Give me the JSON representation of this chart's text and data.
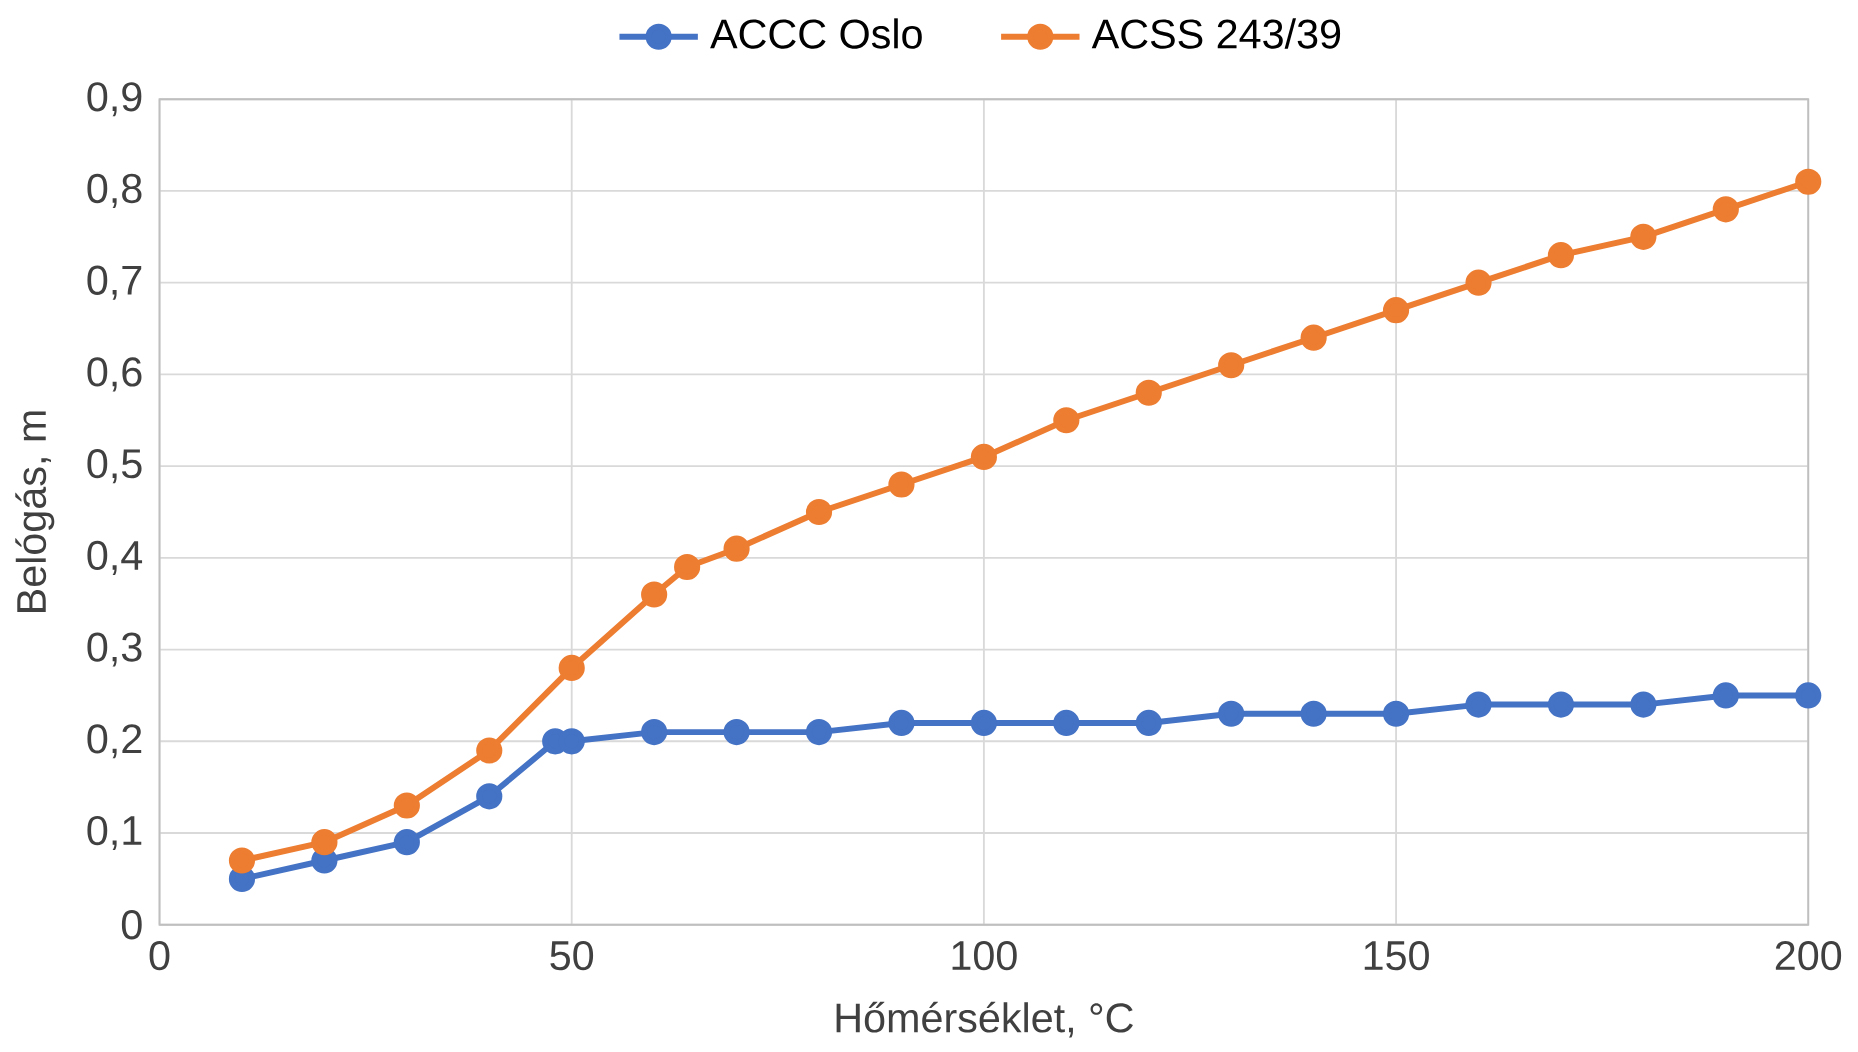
{
  "chart_data": {
    "type": "line",
    "xlabel": "Hőmérséklet, °C",
    "ylabel": "Belógás, m",
    "series": [
      {
        "name": "ACCC Oslo",
        "color": "#4472c4",
        "x": [
          10,
          20,
          30,
          40,
          48,
          50,
          60,
          70,
          80,
          90,
          100,
          110,
          120,
          130,
          140,
          150,
          160,
          170,
          180,
          190,
          200
        ],
        "values": [
          0.05,
          0.07,
          0.09,
          0.14,
          0.2,
          0.2,
          0.21,
          0.21,
          0.21,
          0.22,
          0.22,
          0.22,
          0.22,
          0.23,
          0.23,
          0.23,
          0.24,
          0.24,
          0.24,
          0.25,
          0.25
        ]
      },
      {
        "name": "ACSS 243/39",
        "color": "#ed7d31",
        "x": [
          10,
          20,
          30,
          40,
          50,
          60,
          64,
          70,
          80,
          90,
          100,
          110,
          120,
          130,
          140,
          150,
          160,
          170,
          180,
          190,
          200
        ],
        "values": [
          0.07,
          0.09,
          0.13,
          0.19,
          0.28,
          0.36,
          0.39,
          0.41,
          0.45,
          0.48,
          0.51,
          0.55,
          0.58,
          0.61,
          0.64,
          0.67,
          0.7,
          0.73,
          0.75,
          0.78,
          0.81
        ]
      }
    ],
    "xlim": [
      0,
      200
    ],
    "xticks": [
      0,
      50,
      100,
      150,
      200
    ],
    "ylim": [
      0,
      0.9
    ],
    "yticks": [
      0,
      {
        "value": 0.1,
        "label": "0,1"
      },
      {
        "value": 0.2,
        "label": "0,2"
      },
      {
        "value": 0.3,
        "label": "0,3"
      },
      {
        "value": 0.4,
        "label": "0,4"
      },
      {
        "value": 0.5,
        "label": "0,5"
      },
      {
        "value": 0.6,
        "label": "0,6"
      },
      {
        "value": 0.7,
        "label": "0,7"
      },
      {
        "value": 0.8,
        "label": "0,8"
      },
      {
        "value": 0.9,
        "label": "0,9"
      }
    ],
    "grid": true,
    "legend": "top",
    "marker": "circle",
    "line_style": "solid"
  }
}
